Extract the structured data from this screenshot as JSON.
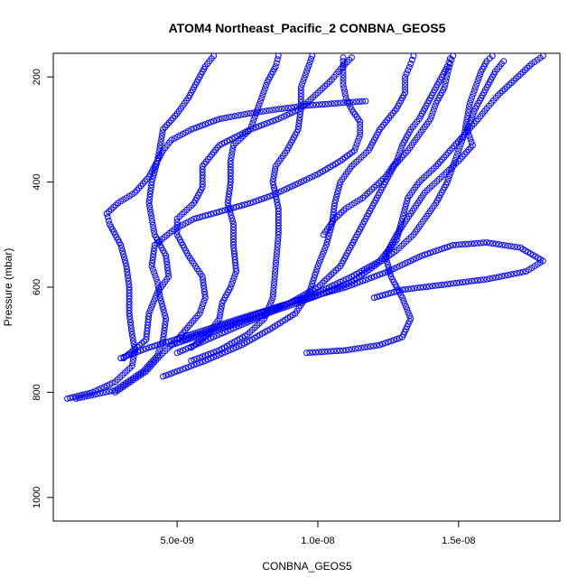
{
  "chart_data": {
    "type": "scatter",
    "title": "ATOM4 Northeast_Pacific_2 CONBNA_GEOS5",
    "xlabel": "CONBNA_GEOS5",
    "ylabel": "Pressure (mbar)",
    "xlim": [
      6e-10,
      1.86e-08
    ],
    "ylim": [
      1045,
      155
    ],
    "y_reversed": true,
    "grid": false,
    "marker": "open-circle",
    "color": "#0000ff",
    "x_ticks": [
      {
        "value": 5e-09,
        "label": "5.0e-09"
      },
      {
        "value": 1e-08,
        "label": "1.0e-08"
      },
      {
        "value": 1.5e-08,
        "label": "1.5e-08"
      }
    ],
    "y_ticks": [
      {
        "value": 200,
        "label": "200"
      },
      {
        "value": 400,
        "label": "400"
      },
      {
        "value": 600,
        "label": "600"
      },
      {
        "value": 800,
        "label": "800"
      },
      {
        "value": 1000,
        "label": "1000"
      }
    ],
    "series": [
      {
        "points": [
          [
            1.1e-09,
            812
          ],
          [
            2e-09,
            800
          ],
          [
            2.8e-09,
            780
          ],
          [
            3.4e-09,
            750
          ],
          [
            3.5e-09,
            720
          ],
          [
            3.4e-09,
            690
          ],
          [
            3.3e-09,
            650
          ],
          [
            3.3e-09,
            600
          ],
          [
            3.2e-09,
            560
          ],
          [
            3e-09,
            520
          ],
          [
            2.6e-09,
            480
          ],
          [
            2.5e-09,
            460
          ],
          [
            2.9e-09,
            440
          ],
          [
            3.5e-09,
            420
          ],
          [
            4e-09,
            390
          ],
          [
            4.2e-09,
            370
          ],
          [
            4.5e-09,
            340
          ],
          [
            4.8e-09,
            320
          ],
          [
            5.5e-09,
            300
          ],
          [
            6.5e-09,
            280
          ],
          [
            7.5e-09,
            270
          ],
          [
            8.5e-09,
            262
          ],
          [
            9.5e-09,
            255
          ],
          [
            1.07e-08,
            250
          ],
          [
            1.17e-08,
            246
          ]
        ]
      },
      {
        "points": [
          [
            1.4e-09,
            812
          ],
          [
            2.8e-09,
            796
          ],
          [
            3.8e-09,
            760
          ],
          [
            4.3e-09,
            730
          ],
          [
            4.5e-09,
            700
          ],
          [
            4.6e-09,
            660
          ],
          [
            4.4e-09,
            620
          ],
          [
            4.3e-09,
            590
          ],
          [
            4.1e-09,
            560
          ],
          [
            4.2e-09,
            520
          ],
          [
            4.9e-09,
            490
          ],
          [
            5.6e-09,
            470
          ],
          [
            6.6e-09,
            455
          ],
          [
            7.6e-09,
            440
          ],
          [
            8.4e-09,
            425
          ],
          [
            9.2e-09,
            405
          ],
          [
            1e-08,
            385
          ],
          [
            1.08e-08,
            360
          ],
          [
            1.13e-08,
            340
          ],
          [
            1.15e-08,
            310
          ],
          [
            1.15e-08,
            285
          ],
          [
            1.12e-08,
            262
          ],
          [
            1.1e-08,
            240
          ],
          [
            1.09e-08,
            215
          ],
          [
            1.09e-08,
            190
          ],
          [
            1.09e-08,
            163
          ]
        ]
      },
      {
        "points": [
          [
            3.1e-09,
            735
          ],
          [
            3.9e-09,
            700
          ],
          [
            4e-09,
            650
          ],
          [
            4.3e-09,
            610
          ],
          [
            4.7e-09,
            580
          ],
          [
            4.6e-09,
            540
          ],
          [
            4.2e-09,
            500
          ],
          [
            4.1e-09,
            470
          ],
          [
            4e-09,
            440
          ],
          [
            4.1e-09,
            400
          ],
          [
            4.3e-09,
            360
          ],
          [
            4.4e-09,
            330
          ],
          [
            4.5e-09,
            300
          ],
          [
            5e-09,
            270
          ],
          [
            5.4e-09,
            240
          ],
          [
            5.7e-09,
            210
          ],
          [
            6e-09,
            180
          ],
          [
            6.3e-09,
            160
          ]
        ]
      },
      {
        "points": [
          [
            2.8e-09,
            800
          ],
          [
            3.9e-09,
            760
          ],
          [
            4.4e-09,
            730
          ],
          [
            5e-09,
            700
          ],
          [
            5.8e-09,
            650
          ],
          [
            6e-09,
            620
          ],
          [
            5.9e-09,
            580
          ],
          [
            5.4e-09,
            540
          ],
          [
            5e-09,
            500
          ],
          [
            5e-09,
            470
          ],
          [
            5.6e-09,
            440
          ],
          [
            5.9e-09,
            410
          ],
          [
            5.9e-09,
            370
          ],
          [
            6.5e-09,
            330
          ],
          [
            7.6e-09,
            300
          ],
          [
            8.6e-09,
            280
          ],
          [
            9.4e-09,
            260
          ],
          [
            1e-08,
            230
          ],
          [
            1.05e-08,
            205
          ],
          [
            1.08e-08,
            185
          ],
          [
            1.12e-08,
            163
          ]
        ]
      },
      {
        "points": [
          [
            5.5e-09,
            715
          ],
          [
            6.1e-09,
            690
          ],
          [
            6.5e-09,
            660
          ],
          [
            6.6e-09,
            630
          ],
          [
            6.9e-09,
            600
          ],
          [
            7.1e-09,
            570
          ],
          [
            7e-09,
            520
          ],
          [
            7e-09,
            480
          ],
          [
            6.8e-09,
            440
          ],
          [
            6.9e-09,
            400
          ],
          [
            6.9e-09,
            360
          ],
          [
            7e-09,
            330
          ],
          [
            7.6e-09,
            300
          ],
          [
            7.8e-09,
            270
          ],
          [
            8e-09,
            240
          ],
          [
            8.2e-09,
            210
          ],
          [
            8.5e-09,
            180
          ],
          [
            8.6e-09,
            160
          ]
        ]
      },
      {
        "points": [
          [
            5.5e-09,
            740
          ],
          [
            6.5e-09,
            720
          ],
          [
            7.5e-09,
            690
          ],
          [
            8.1e-09,
            660
          ],
          [
            8.4e-09,
            620
          ],
          [
            8.5e-09,
            560
          ],
          [
            8.6e-09,
            500
          ],
          [
            8.6e-09,
            450
          ],
          [
            8.4e-09,
            400
          ],
          [
            8.5e-09,
            370
          ],
          [
            8.9e-09,
            340
          ],
          [
            9.3e-09,
            300
          ],
          [
            9.4e-09,
            260
          ],
          [
            9.4e-09,
            220
          ],
          [
            9.6e-09,
            190
          ],
          [
            9.8e-09,
            160
          ]
        ]
      },
      {
        "points": [
          [
            4.5e-09,
            770
          ],
          [
            6e-09,
            740
          ],
          [
            7.3e-09,
            710
          ],
          [
            8.3e-09,
            680
          ],
          [
            9.2e-09,
            650
          ],
          [
            9.7e-09,
            610
          ],
          [
            1e-08,
            560
          ],
          [
            1.03e-08,
            520
          ],
          [
            1.05e-08,
            480
          ],
          [
            1.06e-08,
            440
          ],
          [
            1.08e-08,
            400
          ],
          [
            1.12e-08,
            370
          ],
          [
            1.18e-08,
            340
          ],
          [
            1.22e-08,
            300
          ],
          [
            1.28e-08,
            260
          ],
          [
            1.31e-08,
            230
          ],
          [
            1.31e-08,
            200
          ],
          [
            1.33e-08,
            175
          ],
          [
            1.34e-08,
            160
          ]
        ]
      },
      {
        "points": [
          [
            5e-09,
            725
          ],
          [
            6.5e-09,
            690
          ],
          [
            7.8e-09,
            660
          ],
          [
            9e-09,
            630
          ],
          [
            1e-08,
            600
          ],
          [
            1.08e-08,
            560
          ],
          [
            1.12e-08,
            520
          ],
          [
            1.16e-08,
            480
          ],
          [
            1.2e-08,
            440
          ],
          [
            1.24e-08,
            400
          ],
          [
            1.27e-08,
            370
          ],
          [
            1.32e-08,
            340
          ],
          [
            1.36e-08,
            310
          ],
          [
            1.4e-08,
            280
          ],
          [
            1.42e-08,
            250
          ],
          [
            1.45e-08,
            220
          ],
          [
            1.46e-08,
            195
          ],
          [
            1.47e-08,
            175
          ],
          [
            1.48e-08,
            160
          ]
        ]
      },
      {
        "points": [
          [
            4.8e-09,
            710
          ],
          [
            6.5e-09,
            680
          ],
          [
            8.2e-09,
            650
          ],
          [
            9.8e-09,
            620
          ],
          [
            1.12e-08,
            590
          ],
          [
            1.2e-08,
            560
          ],
          [
            1.28e-08,
            530
          ],
          [
            1.34e-08,
            500
          ],
          [
            1.38e-08,
            470
          ],
          [
            1.42e-08,
            440
          ],
          [
            1.46e-08,
            400
          ],
          [
            1.48e-08,
            370
          ],
          [
            1.5e-08,
            340
          ],
          [
            1.52e-08,
            310
          ],
          [
            1.53e-08,
            280
          ],
          [
            1.54e-08,
            250
          ],
          [
            1.56e-08,
            220
          ],
          [
            1.58e-08,
            190
          ],
          [
            1.6e-08,
            170
          ],
          [
            1.62e-08,
            160
          ]
        ]
      },
      {
        "points": [
          [
            3e-09,
            735
          ],
          [
            4e-09,
            715
          ],
          [
            5.5e-09,
            690
          ],
          [
            7.2e-09,
            660
          ],
          [
            9e-09,
            630
          ],
          [
            1.1e-08,
            600
          ],
          [
            1.25e-08,
            570
          ],
          [
            1.37e-08,
            540
          ],
          [
            1.48e-08,
            520
          ],
          [
            1.6e-08,
            515
          ],
          [
            1.72e-08,
            525
          ],
          [
            1.8e-08,
            550
          ],
          [
            1.74e-08,
            570
          ],
          [
            1.6e-08,
            585
          ],
          [
            1.45e-08,
            595
          ],
          [
            1.3e-08,
            605
          ],
          [
            1.2e-08,
            620
          ]
        ]
      },
      {
        "points": [
          [
            5.2e-09,
            700
          ],
          [
            6.8e-09,
            670
          ],
          [
            8.5e-09,
            640
          ],
          [
            1e-08,
            610
          ],
          [
            1.12e-08,
            580
          ],
          [
            1.22e-08,
            550
          ],
          [
            1.28e-08,
            510
          ],
          [
            1.3e-08,
            470
          ],
          [
            1.32e-08,
            430
          ],
          [
            1.36e-08,
            400
          ],
          [
            1.42e-08,
            370
          ],
          [
            1.47e-08,
            340
          ],
          [
            1.52e-08,
            310
          ],
          [
            1.57e-08,
            280
          ],
          [
            1.6e-08,
            260
          ],
          [
            1.64e-08,
            235
          ],
          [
            1.68e-08,
            215
          ],
          [
            1.72e-08,
            195
          ],
          [
            1.76e-08,
            175
          ],
          [
            1.8e-08,
            160
          ]
        ]
      },
      {
        "points": [
          [
            9.6e-09,
            725
          ],
          [
            1.1e-08,
            720
          ],
          [
            1.22e-08,
            710
          ],
          [
            1.3e-08,
            695
          ],
          [
            1.33e-08,
            660
          ],
          [
            1.3e-08,
            620
          ],
          [
            1.26e-08,
            580
          ],
          [
            1.24e-08,
            540
          ],
          [
            1.28e-08,
            500
          ],
          [
            1.33e-08,
            460
          ],
          [
            1.38e-08,
            420
          ],
          [
            1.44e-08,
            390
          ],
          [
            1.5e-08,
            360
          ],
          [
            1.55e-08,
            330
          ],
          [
            1.53e-08,
            300
          ],
          [
            1.56e-08,
            260
          ],
          [
            1.6e-08,
            220
          ],
          [
            1.63e-08,
            190
          ],
          [
            1.66e-08,
            170
          ]
        ]
      },
      {
        "points": [
          [
            1.02e-08,
            500
          ],
          [
            1.06e-08,
            470
          ],
          [
            1.1e-08,
            450
          ],
          [
            1.16e-08,
            430
          ],
          [
            1.2e-08,
            410
          ],
          [
            1.24e-08,
            390
          ],
          [
            1.28e-08,
            360
          ],
          [
            1.3e-08,
            330
          ],
          [
            1.33e-08,
            300
          ],
          [
            1.36e-08,
            280
          ],
          [
            1.38e-08,
            260
          ],
          [
            1.4e-08,
            240
          ],
          [
            1.42e-08,
            220
          ],
          [
            1.44e-08,
            200
          ],
          [
            1.46e-08,
            180
          ],
          [
            1.47e-08,
            165
          ]
        ]
      }
    ]
  }
}
